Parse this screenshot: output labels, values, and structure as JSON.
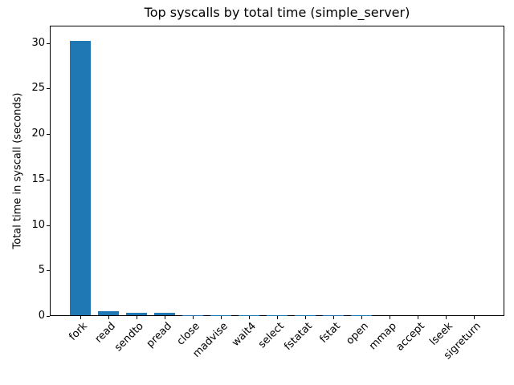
{
  "chart_data": {
    "type": "bar",
    "title": "Top syscalls by total time (simple_server)",
    "ylabel": "Total time in syscall (seconds)",
    "xlabel": "",
    "categories": [
      "fork",
      "read",
      "sendto",
      "pread",
      "close",
      "madvise",
      "wait4",
      "select",
      "fstatat",
      "fstat",
      "open",
      "mmap",
      "accept",
      "lseek",
      "sigreturn"
    ],
    "values": [
      30.1,
      0.4,
      0.28,
      0.24,
      0.04,
      0.03,
      0.02,
      0.015,
      0.012,
      0.01,
      0.008,
      0.006,
      0.005,
      0.003,
      0.002
    ],
    "yticks": [
      0,
      5,
      10,
      15,
      20,
      25,
      30
    ],
    "ylim": [
      0,
      31.9
    ],
    "bar_color": "#1f77b4",
    "background_color": "#ffffff",
    "text_color": "#000000",
    "grid": false,
    "legend": "none",
    "x_label_rotation_deg": 45
  }
}
